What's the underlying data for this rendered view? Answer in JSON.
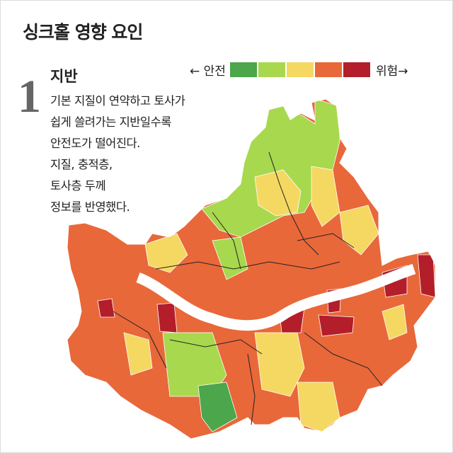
{
  "title": "싱크홀 영향 요인",
  "legend": {
    "safe_label": "← 안전",
    "danger_label": "위험→",
    "colors": [
      "#4ca64c",
      "#a8d84e",
      "#f5d862",
      "#e8683a",
      "#b31e2a"
    ]
  },
  "section": {
    "number": "1",
    "heading": "지반",
    "body_lines": [
      "기본 지질이 연약하고 토사가",
      "쉽게 쓸려가는 지반일수록",
      "안전도가 떨어진다.",
      "지질, 충적층,",
      "토사층 두께",
      "정보를 반영했다."
    ]
  },
  "map": {
    "region": "서울",
    "river": "한강"
  }
}
